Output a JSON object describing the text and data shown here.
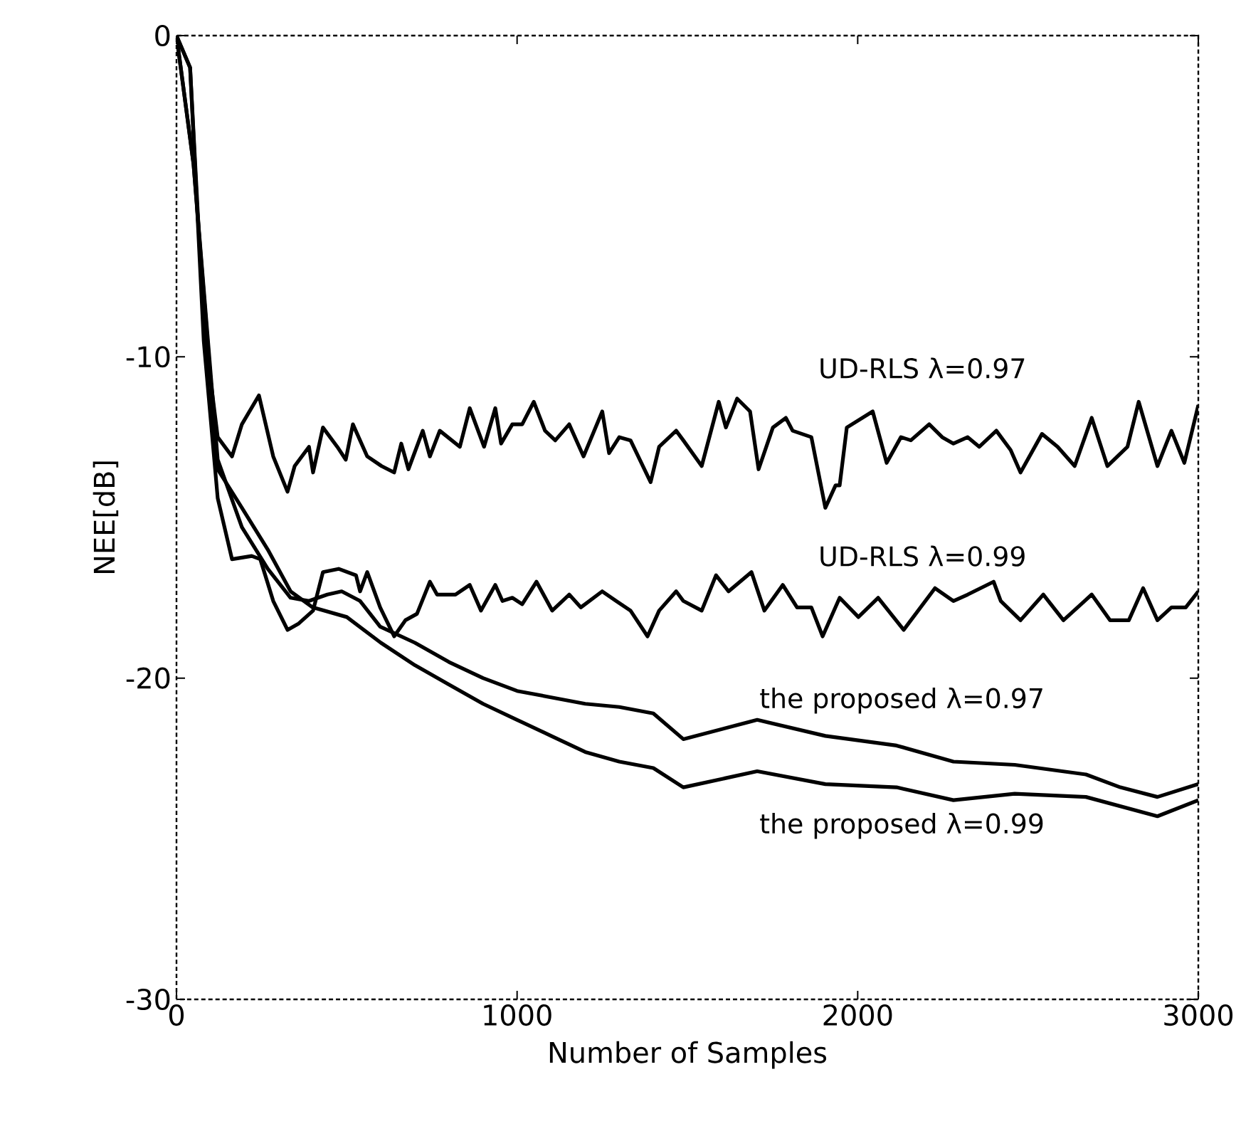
{
  "chart_data": {
    "type": "line",
    "xlabel": "Number of Samples",
    "ylabel": "NEE[dB]",
    "xlim": [
      0,
      3000
    ],
    "ylim": [
      -30,
      0
    ],
    "xticks": [
      0,
      1000,
      2000,
      3000
    ],
    "yticks": [
      -30,
      -20,
      -10,
      0
    ],
    "grid": false,
    "legend": false,
    "marker": "none",
    "line_style": "solid",
    "series": [
      {
        "name": "UD-RLS λ=0.97",
        "color": "#000000",
        "x": [
          0,
          40,
          80,
          121,
          163,
          192,
          242,
          284,
          326,
          347,
          389,
          401,
          430,
          472,
          497,
          518,
          560,
          602,
          639,
          660,
          681,
          723,
          744,
          773,
          832,
          861,
          903,
          936,
          953,
          986,
          1015,
          1049,
          1082,
          1112,
          1153,
          1195,
          1250,
          1270,
          1300,
          1333,
          1392,
          1417,
          1467,
          1488,
          1542,
          1592,
          1613,
          1646,
          1684,
          1709,
          1751,
          1789,
          1809,
          1864,
          1905,
          1935,
          1947,
          1968,
          2044,
          2085,
          2127,
          2156,
          2210,
          2248,
          2281,
          2323,
          2357,
          2407,
          2449,
          2478,
          2541,
          2587,
          2637,
          2687,
          2733,
          2792,
          2825,
          2880,
          2921,
          2959,
          3000
        ],
        "values": [
          0,
          -1,
          -9,
          -12.5,
          -13.1,
          -12.1,
          -11.2,
          -13.1,
          -14.2,
          -13.4,
          -12.8,
          -13.6,
          -12.2,
          -12.8,
          -13.2,
          -12.1,
          -13.1,
          -13.4,
          -13.6,
          -12.7,
          -13.5,
          -12.3,
          -13.1,
          -12.3,
          -12.8,
          -11.6,
          -12.8,
          -11.6,
          -12.7,
          -12.1,
          -12.1,
          -11.4,
          -12.3,
          -12.6,
          -12.1,
          -13.1,
          -11.7,
          -13,
          -12.5,
          -12.6,
          -13.9,
          -12.8,
          -12.3,
          -12.6,
          -13.4,
          -11.4,
          -12.2,
          -11.3,
          -11.7,
          -13.5,
          -12.2,
          -11.9,
          -12.3,
          -12.5,
          -14.7,
          -14,
          -14,
          -12.2,
          -11.7,
          -13.3,
          -12.5,
          -12.6,
          -12.1,
          -12.5,
          -12.7,
          -12.5,
          -12.8,
          -12.3,
          -12.9,
          -13.6,
          -12.4,
          -12.8,
          -13.4,
          -11.9,
          -13.4,
          -12.8,
          -11.4,
          -13.4,
          -12.3,
          -13.3,
          -11.5
        ]
      },
      {
        "name": "UD-RLS λ=0.99",
        "color": "#000000",
        "x": [
          0,
          40,
          80,
          121,
          163,
          221,
          246,
          284,
          326,
          359,
          401,
          430,
          476,
          527,
          539,
          560,
          598,
          639,
          672,
          706,
          744,
          765,
          819,
          861,
          894,
          936,
          957,
          986,
          1015,
          1057,
          1103,
          1153,
          1187,
          1250,
          1291,
          1333,
          1383,
          1417,
          1467,
          1488,
          1542,
          1584,
          1621,
          1688,
          1726,
          1780,
          1822,
          1864,
          1897,
          1947,
          2002,
          2060,
          2135,
          2227,
          2281,
          2323,
          2399,
          2420,
          2478,
          2545,
          2604,
          2687,
          2741,
          2796,
          2838,
          2880,
          2921,
          2963,
          3000
        ],
        "values": [
          0,
          -1,
          -9.5,
          -14.4,
          -16.3,
          -16.2,
          -16.3,
          -17.6,
          -18.5,
          -18.3,
          -17.9,
          -16.7,
          -16.6,
          -16.8,
          -17.3,
          -16.7,
          -17.8,
          -18.7,
          -18.2,
          -18,
          -17,
          -17.4,
          -17.4,
          -17.1,
          -17.9,
          -17.1,
          -17.6,
          -17.5,
          -17.7,
          -17,
          -17.9,
          -17.4,
          -17.8,
          -17.3,
          -17.6,
          -17.9,
          -18.7,
          -17.9,
          -17.3,
          -17.6,
          -17.9,
          -16.8,
          -17.3,
          -16.7,
          -17.9,
          -17.1,
          -17.8,
          -17.8,
          -18.7,
          -17.5,
          -18.1,
          -17.5,
          -18.5,
          -17.2,
          -17.6,
          -17.4,
          -17,
          -17.6,
          -18.2,
          -17.4,
          -18.2,
          -17.4,
          -18.2,
          -18.2,
          -17.2,
          -18.2,
          -17.8,
          -17.8,
          -17.3
        ]
      },
      {
        "name": "the proposed λ=0.97",
        "color": "#000000",
        "x": [
          0,
          50,
          121,
          192,
          268,
          335,
          389,
          443,
          485,
          539,
          598,
          700,
          800,
          900,
          1000,
          1100,
          1200,
          1300,
          1400,
          1488,
          1705,
          1905,
          2114,
          2281,
          2461,
          2670,
          2771,
          2880,
          3000
        ],
        "values": [
          0,
          -4,
          -13.2,
          -15.3,
          -16.6,
          -17.5,
          -17.6,
          -17.4,
          -17.3,
          -17.6,
          -18.4,
          -18.9,
          -19.5,
          -20,
          -20.4,
          -20.6,
          -20.8,
          -20.9,
          -21.1,
          -21.9,
          -21.3,
          -21.8,
          -22.1,
          -22.6,
          -22.7,
          -23,
          -23.4,
          -23.7,
          -23.3
        ]
      },
      {
        "name": "the proposed λ=0.99",
        "color": "#000000",
        "x": [
          0,
          50,
          121,
          192,
          268,
          335,
          400,
          500,
          600,
          700,
          800,
          900,
          1000,
          1100,
          1200,
          1300,
          1400,
          1488,
          1705,
          1905,
          2114,
          2281,
          2461,
          2670,
          2880,
          3000
        ],
        "values": [
          0,
          -4,
          -13.5,
          -14.7,
          -16,
          -17.3,
          -17.8,
          -18.1,
          -18.9,
          -19.6,
          -20.2,
          -20.8,
          -21.3,
          -21.8,
          -22.3,
          -22.6,
          -22.8,
          -23.4,
          -22.9,
          -23.3,
          -23.4,
          -23.8,
          -23.6,
          -23.7,
          -24.3,
          -23.8
        ]
      }
    ]
  }
}
